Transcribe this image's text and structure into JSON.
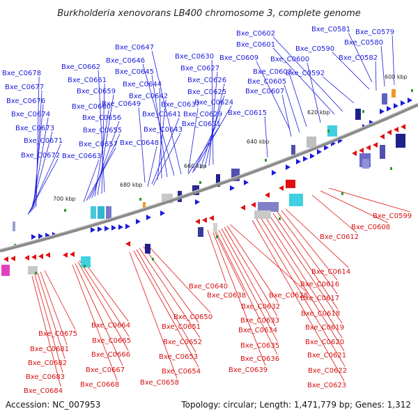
{
  "title": "Burkholderia xenovorans LB400 chromosome 3, complete genome",
  "footer": {
    "accession": "Accession: NC_007953",
    "summary": "Topology: circular; Length: 1,471,779 bp; Genes: 1,312"
  },
  "ticks": [
    "600 kbp",
    "620 kbp",
    "640 kbp",
    "660 kbp",
    "680 kbp",
    "700 kbp"
  ],
  "colors": {
    "forward": "#1a1adc",
    "reverse": "#e01010",
    "backbone": "#8a8a8a"
  },
  "forward_labels": [
    "Bxe_C0581",
    "Bxe_C0579",
    "Bxe_C0580",
    "Bxe_C0602",
    "Bxe_C0601",
    "Bxe_C0590",
    "Bxe_C0582",
    "Bxe_C0609",
    "Bxe_C0600",
    "Bxe_C0603",
    "Bxe_C0592",
    "Bxe_C0605",
    "Bxe_C0607",
    "Bxe_C0615",
    "Bxe_C0647",
    "Bxe_C0646",
    "Bxe_C0645",
    "Bxe_C0644",
    "Bxe_C0642",
    "Bxe_C0649",
    "Bxe_C0641",
    "Bxe_C0643",
    "Bxe_C0648",
    "Bxe_C0630",
    "Bxe_C0627",
    "Bxe_C0626",
    "Bxe_C0625",
    "Bxe_C0637",
    "Bxe_C0624",
    "Bxe_C0629",
    "Bxe_C0631",
    "Bxe_C0662",
    "Bxe_C0661",
    "Bxe_C0659",
    "Bxe_C0660",
    "Bxe_C0656",
    "Bxe_C0655",
    "Bxe_C0657",
    "Bxe_C0663",
    "Bxe_C0678",
    "Bxe_C0677",
    "Bxe_C0676",
    "Bxe_C0674",
    "Bxe_C0673",
    "Bxe_C0671",
    "Bxe_C0672"
  ],
  "reverse_labels": [
    "Bxe_C0599",
    "Bxe_C0608",
    "Bxe_C0612",
    "Bxe_C0614",
    "Bxe_C0616",
    "Bxe_C0617",
    "Bxe_C0618",
    "Bxe_C0619",
    "Bxe_C0620",
    "Bxe_C0621",
    "Bxe_C0622",
    "Bxe_C0623",
    "Bxe_C0640",
    "Bxe_C0638",
    "Bxe_C0628",
    "Bxe_C0632",
    "Bxe_C0633",
    "Bxe_C0634",
    "Bxe_C0635",
    "Bxe_C0636",
    "Bxe_C0639",
    "Bxe_C0650",
    "Bxe_C0651",
    "Bxe_C0652",
    "Bxe_C0653",
    "Bxe_C0654",
    "Bxe_C0658",
    "Bxe_C0664",
    "Bxe_C0665",
    "Bxe_C0666",
    "Bxe_C0667",
    "Bxe_C0668",
    "Bxe_C0675",
    "Bxe_C0681",
    "Bxe_C0682",
    "Bxe_C0683",
    "Bxe_C0684"
  ]
}
